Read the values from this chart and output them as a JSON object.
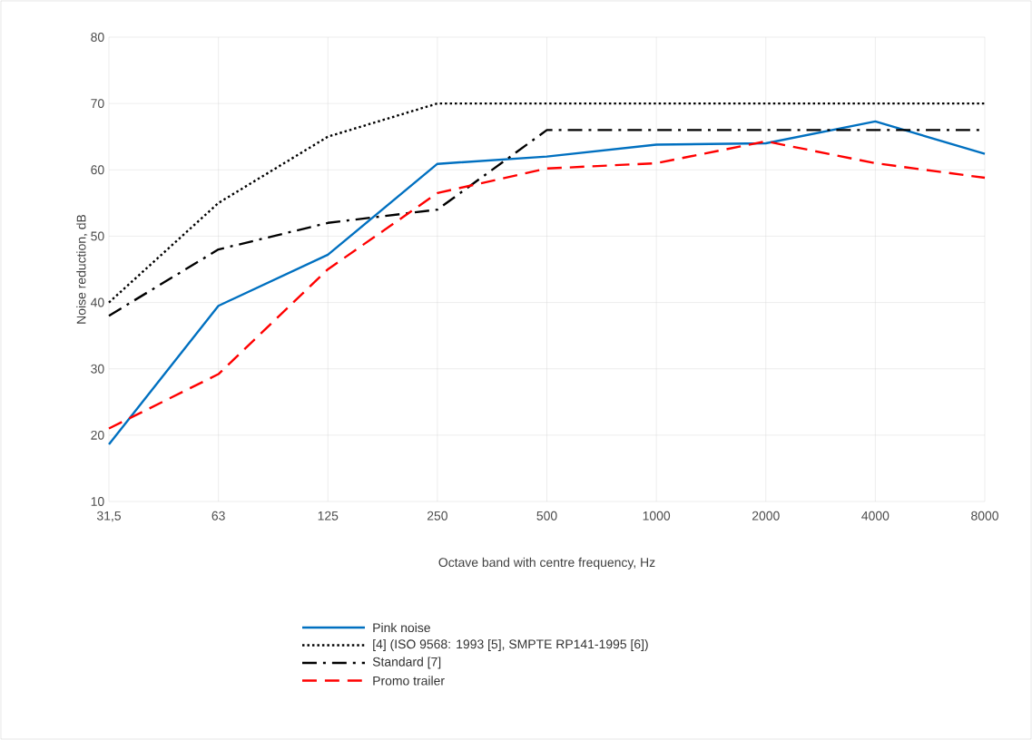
{
  "chart_data": {
    "type": "line",
    "xlabel": "Octave band with centre frequency, Hz",
    "ylabel": "Noise reduction, dB",
    "categories": [
      "31,5",
      "63",
      "125",
      "250",
      "500",
      "1000",
      "2000",
      "4000",
      "8000"
    ],
    "ylim": [
      10,
      80
    ],
    "yticks": [
      10,
      20,
      30,
      40,
      50,
      60,
      70,
      80
    ],
    "grid": true,
    "legend": "bottom",
    "marker": "none",
    "series": [
      {
        "name": "Pink noise",
        "color": "#0070c0",
        "line_style": "solid",
        "values": [
          18.6,
          39.5,
          47.2,
          60.9,
          62,
          63.8,
          64,
          67.3,
          62.4
        ]
      },
      {
        "name": "[4] (ISO 9568: 1993 [5], SMPTE RP141-1995 [6])",
        "color": "#000000",
        "line_style": "dotted",
        "values": [
          40,
          55,
          65,
          70,
          70,
          70,
          70,
          70,
          70
        ]
      },
      {
        "name": "Standard [7]",
        "color": "#000000",
        "line_style": "dashdot",
        "values": [
          38,
          48,
          52,
          54,
          66,
          66,
          66,
          66,
          66
        ]
      },
      {
        "name": "Promo trailer",
        "color": "#ff0000",
        "line_style": "dashed",
        "values": [
          21,
          29.2,
          45,
          56.5,
          60.2,
          61,
          64.3,
          61,
          58.8
        ]
      }
    ]
  }
}
